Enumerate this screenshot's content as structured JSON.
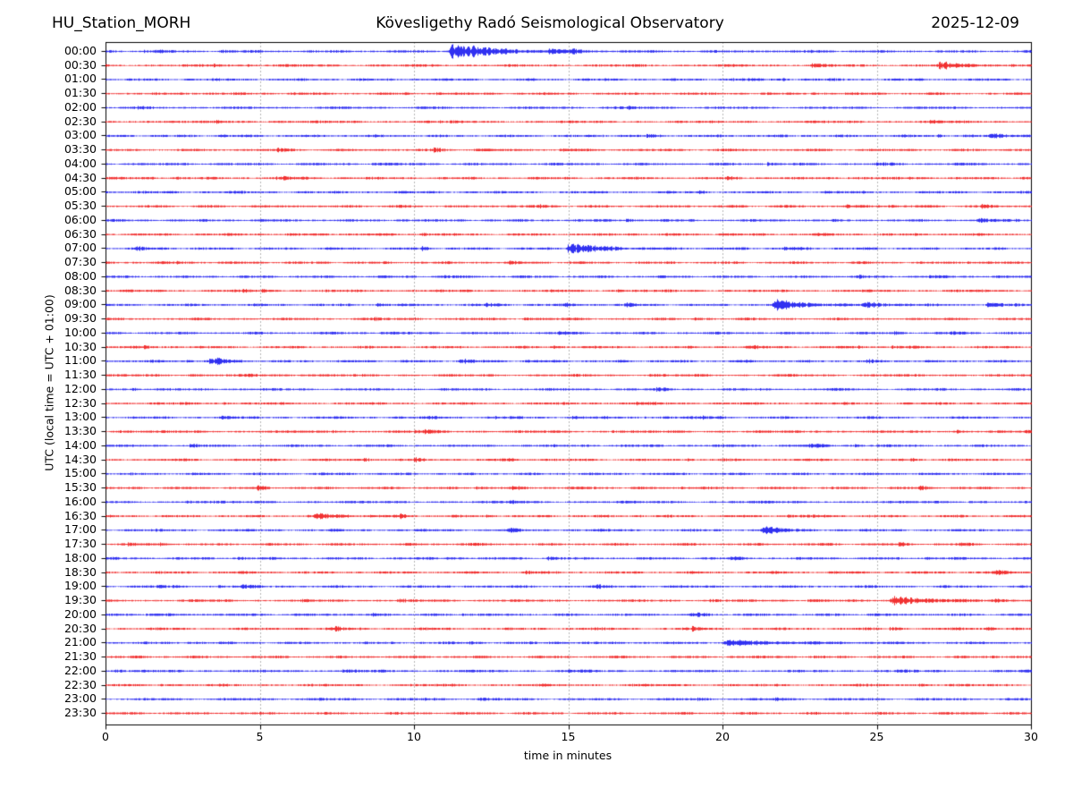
{
  "header": {
    "station": "HU_Station_MORH",
    "title": "Kövesligethy Radó Seismological Observatory",
    "date": "2025-12-09"
  },
  "axes": {
    "xlabel": "time in minutes",
    "ylabel": "UTC (local time = UTC + 01:00)",
    "x_ticks": [
      0,
      5,
      10,
      15,
      20,
      25,
      30
    ]
  },
  "colors": {
    "trace_blue": "#0000ee",
    "trace_red": "#ee0000",
    "frame": "#000000",
    "grid": "#444444",
    "background": "#ffffff",
    "text": "#000000"
  },
  "chart_data": {
    "type": "line",
    "subtype": "helicorder-dayplot",
    "title": "Kövesligethy Radó Seismological Observatory",
    "xlabel": "time in minutes",
    "ylabel": "UTC (local time = UTC + 01:00)",
    "x_range_minutes": [
      0,
      30
    ],
    "minutes_per_line": 30,
    "grid": "dotted vertical lines every 5 minutes",
    "legend": "none",
    "rows": [
      {
        "label": "00:00",
        "color": "blue"
      },
      {
        "label": "00:30",
        "color": "red"
      },
      {
        "label": "01:00",
        "color": "blue"
      },
      {
        "label": "01:30",
        "color": "red"
      },
      {
        "label": "02:00",
        "color": "blue"
      },
      {
        "label": "02:30",
        "color": "red"
      },
      {
        "label": "03:00",
        "color": "blue"
      },
      {
        "label": "03:30",
        "color": "red"
      },
      {
        "label": "04:00",
        "color": "blue"
      },
      {
        "label": "04:30",
        "color": "red"
      },
      {
        "label": "05:00",
        "color": "blue"
      },
      {
        "label": "05:30",
        "color": "red"
      },
      {
        "label": "06:00",
        "color": "blue"
      },
      {
        "label": "06:30",
        "color": "red"
      },
      {
        "label": "07:00",
        "color": "blue"
      },
      {
        "label": "07:30",
        "color": "red"
      },
      {
        "label": "08:00",
        "color": "blue"
      },
      {
        "label": "08:30",
        "color": "red"
      },
      {
        "label": "09:00",
        "color": "blue"
      },
      {
        "label": "09:30",
        "color": "red"
      },
      {
        "label": "10:00",
        "color": "blue"
      },
      {
        "label": "10:30",
        "color": "red"
      },
      {
        "label": "11:00",
        "color": "blue"
      },
      {
        "label": "11:30",
        "color": "red"
      },
      {
        "label": "12:00",
        "color": "blue"
      },
      {
        "label": "12:30",
        "color": "red"
      },
      {
        "label": "13:00",
        "color": "blue"
      },
      {
        "label": "13:30",
        "color": "red"
      },
      {
        "label": "14:00",
        "color": "blue"
      },
      {
        "label": "14:30",
        "color": "red"
      },
      {
        "label": "15:00",
        "color": "blue"
      },
      {
        "label": "15:30",
        "color": "red"
      },
      {
        "label": "16:00",
        "color": "blue"
      },
      {
        "label": "16:30",
        "color": "red"
      },
      {
        "label": "17:00",
        "color": "blue"
      },
      {
        "label": "17:30",
        "color": "red"
      },
      {
        "label": "18:00",
        "color": "blue"
      },
      {
        "label": "18:30",
        "color": "red"
      },
      {
        "label": "19:00",
        "color": "blue"
      },
      {
        "label": "19:30",
        "color": "red"
      },
      {
        "label": "20:00",
        "color": "blue"
      },
      {
        "label": "20:30",
        "color": "red"
      },
      {
        "label": "21:00",
        "color": "blue"
      },
      {
        "label": "21:30",
        "color": "red"
      },
      {
        "label": "22:00",
        "color": "blue"
      },
      {
        "label": "22:30",
        "color": "red"
      },
      {
        "label": "23:00",
        "color": "blue"
      },
      {
        "label": "23:30",
        "color": "red"
      }
    ],
    "events": [
      {
        "row": "00:00",
        "start_min": 11.2,
        "peak_amplitude": 10.0,
        "decay_min": 1.2
      },
      {
        "row": "00:00",
        "start_min": 14.4,
        "peak_amplitude": 2.5,
        "decay_min": 0.5
      },
      {
        "row": "00:30",
        "start_min": 27.0,
        "peak_amplitude": 4.0,
        "decay_min": 0.8
      },
      {
        "row": "03:00",
        "start_min": 28.7,
        "peak_amplitude": 2.2,
        "decay_min": 0.8
      },
      {
        "row": "07:00",
        "start_min": 15.0,
        "peak_amplitude": 6.0,
        "decay_min": 1.0
      },
      {
        "row": "09:00",
        "start_min": 21.7,
        "peak_amplitude": 7.0,
        "decay_min": 0.8
      },
      {
        "row": "09:00",
        "start_min": 24.6,
        "peak_amplitude": 2.5,
        "decay_min": 0.8
      },
      {
        "row": "11:00",
        "start_min": 3.6,
        "peak_amplitude": 4.0,
        "decay_min": 0.35
      },
      {
        "row": "16:30",
        "start_min": 6.8,
        "peak_amplitude": 3.0,
        "decay_min": 0.8
      },
      {
        "row": "17:00",
        "start_min": 21.3,
        "peak_amplitude": 5.0,
        "decay_min": 0.5
      },
      {
        "row": "19:30",
        "start_min": 25.5,
        "peak_amplitude": 6.0,
        "decay_min": 0.9
      },
      {
        "row": "19:30",
        "start_min": 28.8,
        "peak_amplitude": 2.0,
        "decay_min": 0.4
      },
      {
        "row": "21:00",
        "start_min": 20.1,
        "peak_amplitude": 3.0,
        "decay_min": 1.6
      }
    ]
  }
}
